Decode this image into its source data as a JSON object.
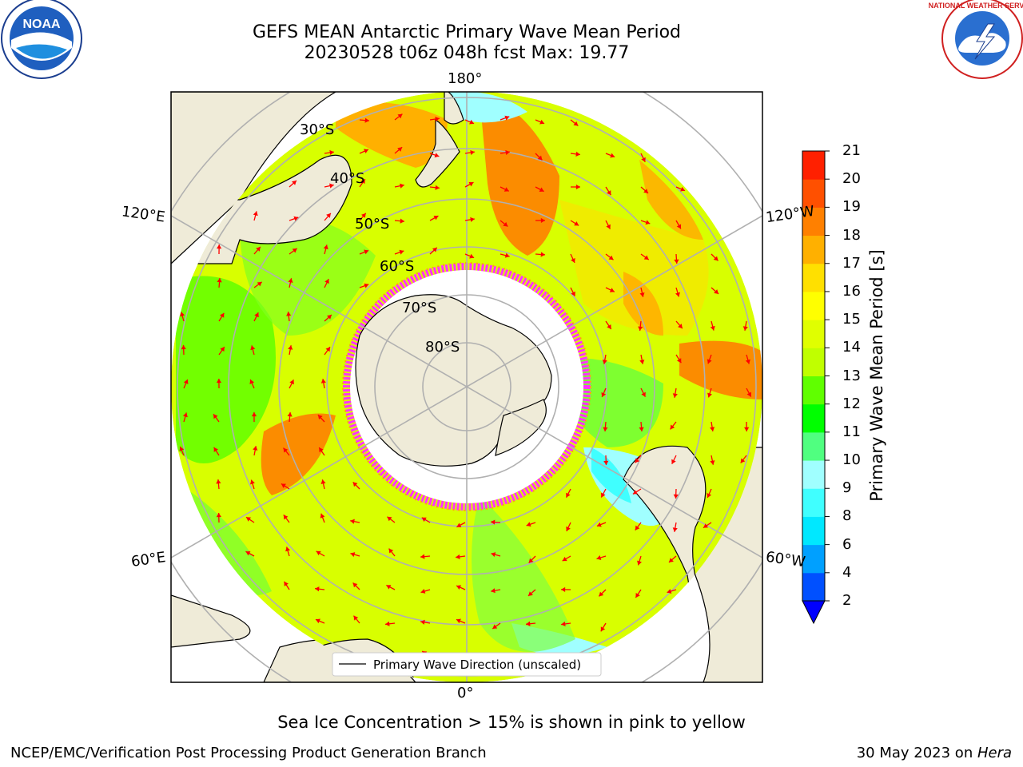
{
  "header": {
    "title_line1": "GEFS MEAN Antarctic Primary Wave Mean Period",
    "title_line2": "20230528 t06z 048h fcst   Max: 19.77"
  },
  "logos": {
    "left": "NOAA",
    "right": "NATIONAL WEATHER SERVICE"
  },
  "map": {
    "projection": "south-polar-stereographic",
    "meridian_labels": {
      "top": "180°",
      "bottom": "0°",
      "upper_left": "120°E",
      "upper_right": "120°W",
      "lower_left": "60°E",
      "lower_right": "60°W"
    },
    "parallel_labels": [
      "30°S",
      "40°S",
      "50°S",
      "60°S",
      "70°S",
      "80°S"
    ],
    "legend_text": "Primary Wave Direction (unscaled)",
    "arrow_color": "#ff0000",
    "ice_edge_colors": [
      "#ff33ff",
      "#ffaa00"
    ]
  },
  "colorbar": {
    "label": "Primary Wave Mean Period [s]",
    "ticks": [
      "2",
      "4",
      "6",
      "8",
      "9",
      "10",
      "11",
      "12",
      "13",
      "14",
      "15",
      "16",
      "17",
      "18",
      "19",
      "20",
      "21"
    ],
    "colors": [
      "#0050ff",
      "#00a0ff",
      "#00e8ff",
      "#40ffff",
      "#a0ffff",
      "#50ff80",
      "#00ff00",
      "#60ff00",
      "#c0ff00",
      "#e0ff00",
      "#ffff00",
      "#ffe000",
      "#ffb000",
      "#ff8000",
      "#ff5000",
      "#ff2000"
    ],
    "extend_color": "#0000ff"
  },
  "notes": {
    "sea_ice": "Sea Ice Concentration > 15% is shown in pink to yellow"
  },
  "footer": {
    "left": "NCEP/EMC/Verification Post Processing Product Generation Branch",
    "right_date": "30 May 2023 on ",
    "right_system": "Hera"
  }
}
